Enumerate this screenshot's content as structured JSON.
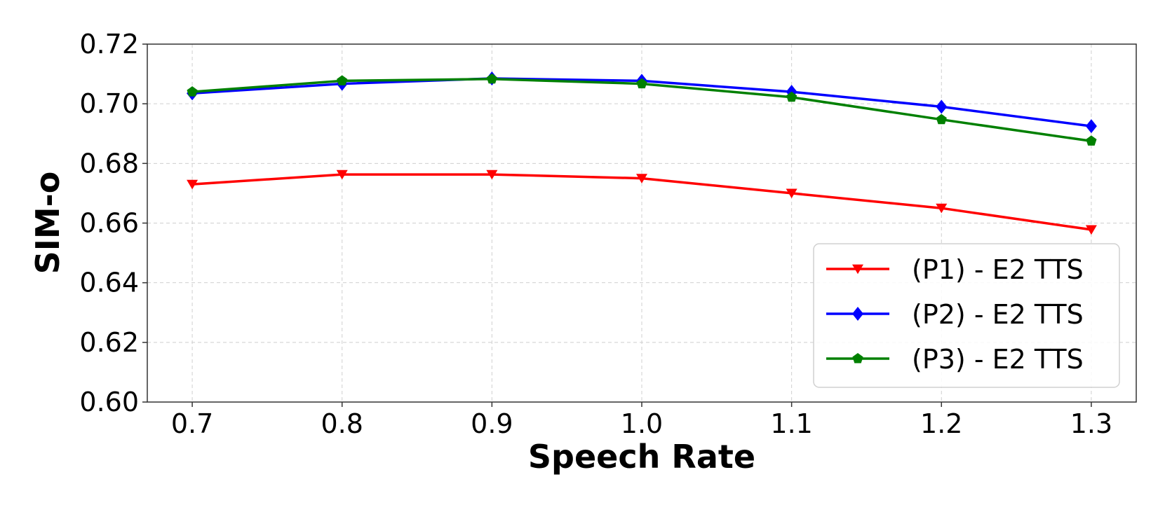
{
  "chart_data": {
    "type": "line",
    "xlabel": "Speech Rate",
    "ylabel": "SIM-o",
    "x": [
      0.7,
      0.8,
      0.9,
      1.0,
      1.1,
      1.2,
      1.3
    ],
    "x_tick_labels": [
      "0.7",
      "0.8",
      "0.9",
      "1.0",
      "1.1",
      "1.2",
      "1.3"
    ],
    "y_ticks": [
      0.6,
      0.62,
      0.64,
      0.66,
      0.68,
      0.7,
      0.72
    ],
    "y_tick_labels": [
      "0.60",
      "0.62",
      "0.64",
      "0.66",
      "0.68",
      "0.70",
      "0.72"
    ],
    "xlim": [
      0.67,
      1.33
    ],
    "ylim": [
      0.6,
      0.72
    ],
    "grid": true,
    "legend_position": "lower-right",
    "series": [
      {
        "name": "(P1) - E2 TTS",
        "color": "#ff0000",
        "marker": "triangle-down",
        "values": [
          0.673,
          0.6763,
          0.6763,
          0.675,
          0.67,
          0.665,
          0.6578
        ]
      },
      {
        "name": "(P2) - E2 TTS",
        "color": "#0000ff",
        "marker": "diamond",
        "values": [
          0.7035,
          0.7067,
          0.7085,
          0.7077,
          0.704,
          0.699,
          0.6925
        ]
      },
      {
        "name": "(P3) - E2 TTS",
        "color": "#008000",
        "marker": "pentagon",
        "values": [
          0.704,
          0.7077,
          0.7083,
          0.7067,
          0.7022,
          0.6947,
          0.6875
        ]
      }
    ]
  }
}
